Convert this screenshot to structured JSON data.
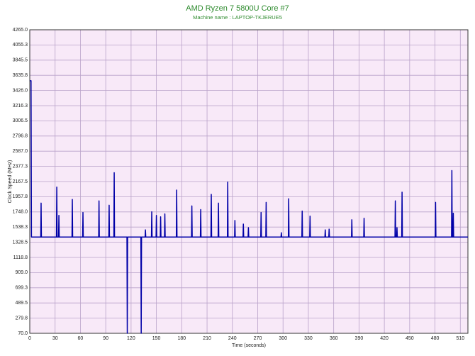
{
  "chart_data": {
    "type": "line",
    "title": "AMD Ryzen 7 5800U Core #7",
    "subtitle": "Machine name : LAPTOP-TKJERUE5",
    "x_label": "Time (seconds)",
    "y_label": "Clock Speed (MHz)",
    "x": [
      0,
      1.5,
      2,
      13,
      13.4,
      13.8,
      31.6,
      32,
      32.4,
      34.1,
      34.5,
      34.9,
      50,
      50.4,
      50.8,
      62.6,
      63,
      63.4,
      81.6,
      82,
      82.4,
      93.6,
      94,
      94.4,
      99.6,
      100,
      100.4,
      115.1,
      115.5,
      115.9,
      131.6,
      132,
      132.4,
      136.6,
      137,
      137.4,
      144.1,
      144.5,
      144.9,
      149.6,
      150,
      150.4,
      154.6,
      155,
      155.4,
      159.6,
      160,
      160.4,
      173.6,
      174,
      174.4,
      191.6,
      192,
      192.4,
      202.1,
      202.5,
      202.9,
      214.6,
      215,
      215.4,
      223.1,
      223.5,
      223.9,
      234.1,
      234.5,
      234.9,
      242.6,
      243,
      243.4,
      252.6,
      253,
      253.4,
      258.6,
      259,
      259.4,
      273.6,
      274,
      274.4,
      279.6,
      280,
      280.4,
      297.6,
      298,
      298.4,
      306.3,
      306.7,
      307.1,
      322.3,
      322.7,
      323.1,
      331.6,
      332,
      332.4,
      349.6,
      350,
      350.4,
      354.2,
      354.6,
      355,
      381.1,
      381.5,
      381.9,
      395.6,
      396,
      396.4,
      432.6,
      433,
      433.4,
      434.6,
      435,
      435.4,
      440.6,
      441,
      441.4,
      480.3,
      480.7,
      481.1,
      499.6,
      500,
      500.4,
      501.3,
      501.7,
      502.1,
      519
    ],
    "series": [
      {
        "color": "#0000a8",
        "values": [
          3560,
          3560,
          1400,
          1400,
          1870,
          1400,
          1400,
          2090,
          1400,
          1400,
          1700,
          1400,
          1400,
          1920,
          1400,
          1400,
          1740,
          1400,
          1400,
          1900,
          1400,
          1400,
          1840,
          1400,
          1400,
          2290,
          1400,
          1400,
          70,
          1400,
          1400,
          70,
          1400,
          1400,
          1500,
          1400,
          1400,
          1750,
          1400,
          1400,
          1700,
          1400,
          1400,
          1680,
          1400,
          1400,
          1720,
          1400,
          1400,
          2050,
          1400,
          1400,
          1830,
          1400,
          1400,
          1780,
          1400,
          1400,
          1990,
          1400,
          1400,
          1870,
          1400,
          1400,
          2160,
          1400,
          1400,
          1630,
          1400,
          1400,
          1580,
          1400,
          1400,
          1530,
          1400,
          1400,
          1740,
          1400,
          1400,
          1880,
          1400,
          1400,
          1460,
          1400,
          1400,
          1930,
          1400,
          1400,
          1760,
          1400,
          1400,
          1690,
          1400,
          1400,
          1500,
          1400,
          1400,
          1510,
          1400,
          1400,
          1640,
          1400,
          1400,
          1660,
          1400,
          1400,
          1900,
          1400,
          1400,
          1530,
          1400,
          1400,
          2020,
          1400,
          1400,
          1880,
          1400,
          1400,
          2320,
          1400,
          1400,
          1730,
          1400,
          1400
        ]
      }
    ],
    "xlim": [
      0,
      519
    ],
    "xticks": [
      0,
      30,
      60,
      90,
      120,
      150,
      180,
      210,
      240,
      270,
      300,
      330,
      360,
      390,
      420,
      450,
      480,
      510
    ],
    "ylim": [
      70,
      4265
    ],
    "yticks": [
      {
        "value": 70,
        "label": "70.0"
      },
      279.8,
      489.5,
      699.3,
      {
        "value": 909,
        "label": "909.0"
      },
      1118.8,
      1328.5,
      1538.3,
      {
        "value": 1748,
        "label": "1748.0"
      },
      1957.8,
      2167.5,
      2377.3,
      {
        "value": 2587,
        "label": "2587.0"
      },
      2796.8,
      3006.5,
      3216.3,
      {
        "value": 3426,
        "label": "3426.0"
      },
      3635.8,
      3845.5,
      4055.3,
      {
        "value": 4265,
        "label": "4265.0"
      }
    ],
    "grid": true
  }
}
